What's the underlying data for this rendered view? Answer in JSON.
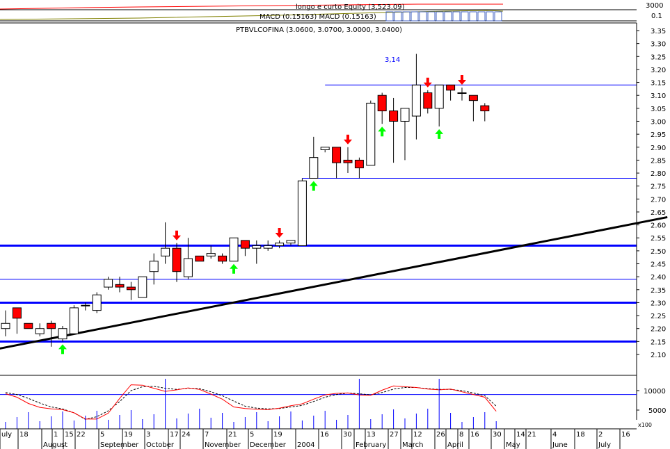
{
  "header": {
    "equity_label": "longo e curto Equity (3,523.09)",
    "macd_label": "MACD (0.15163) MACD (0.15163)",
    "price_label": "PTBVLCOFINA (3.0600, 3.0700, 3.0000, 3.0400)"
  },
  "top_axis": {
    "equity_tick": "3000",
    "macd_tick": "0.1"
  },
  "annotation": {
    "level_label": "3,14"
  },
  "colors": {
    "up_body": "#ffffff",
    "down_body": "#ff0000",
    "hline": "#0000ff",
    "trendline": "#000000",
    "buy_arrow": "#00ff00",
    "sell_arrow": "#ff0000",
    "indicator_fast": "#ff0000",
    "indicator_slow": "#000000",
    "volume": "#0000ff"
  },
  "chart_data": {
    "type": "candlestick",
    "title": "PTBVLCOFINA",
    "ylim": [
      2.08,
      3.37
    ],
    "y_ticks": [
      "3.35",
      "3.30",
      "3.25",
      "3.20",
      "3.15",
      "3.10",
      "3.05",
      "3.00",
      "2.95",
      "2.90",
      "2.85",
      "2.80",
      "2.75",
      "2.70",
      "2.65",
      "2.60",
      "2.55",
      "2.50",
      "2.45",
      "2.40",
      "2.35",
      "2.30",
      "2.25",
      "2.20",
      "2.15",
      "2.10"
    ],
    "x_ticks": [
      "uly",
      "18",
      "August",
      "1",
      "15",
      "22",
      "5",
      "September",
      "19",
      "3",
      "October",
      "17",
      "24",
      "7",
      "November",
      "21",
      "5",
      "December",
      "19",
      "2004",
      "16",
      "30",
      "February",
      "13",
      "27",
      "March",
      "12",
      "26",
      "April",
      "8",
      "16",
      "30",
      "May",
      "14",
      "21",
      "4",
      "June",
      "18",
      "2",
      "July",
      "16"
    ],
    "candles": [
      {
        "o": 2.2,
        "h": 2.27,
        "l": 2.17,
        "c": 2.22
      },
      {
        "o": 2.28,
        "h": 2.28,
        "l": 2.18,
        "c": 2.24
      },
      {
        "o": 2.22,
        "h": 2.21,
        "l": 2.2,
        "c": 2.2
      },
      {
        "o": 2.18,
        "h": 2.22,
        "l": 2.17,
        "c": 2.2
      },
      {
        "o": 2.22,
        "h": 2.23,
        "l": 2.13,
        "c": 2.2
      },
      {
        "o": 2.16,
        "h": 2.21,
        "l": 2.15,
        "c": 2.2
      },
      {
        "o": 2.18,
        "h": 2.29,
        "l": 2.18,
        "c": 2.28
      },
      {
        "o": 2.29,
        "h": 2.3,
        "l": 2.27,
        "c": 2.29
      },
      {
        "o": 2.27,
        "h": 2.34,
        "l": 2.26,
        "c": 2.33
      },
      {
        "o": 2.36,
        "h": 2.4,
        "l": 2.35,
        "c": 2.39
      },
      {
        "o": 2.37,
        "h": 2.4,
        "l": 2.34,
        "c": 2.36
      },
      {
        "o": 2.36,
        "h": 2.38,
        "l": 2.31,
        "c": 2.35
      },
      {
        "o": 2.32,
        "h": 2.4,
        "l": 2.32,
        "c": 2.4
      },
      {
        "o": 2.42,
        "h": 2.49,
        "l": 2.37,
        "c": 2.46
      },
      {
        "o": 2.48,
        "h": 2.61,
        "l": 2.45,
        "c": 2.51
      },
      {
        "o": 2.51,
        "h": 2.53,
        "l": 2.38,
        "c": 2.42
      },
      {
        "o": 2.4,
        "h": 2.55,
        "l": 2.39,
        "c": 2.47
      },
      {
        "o": 2.48,
        "h": 2.47,
        "l": 2.46,
        "c": 2.46
      },
      {
        "o": 2.48,
        "h": 2.52,
        "l": 2.47,
        "c": 2.49
      },
      {
        "o": 2.48,
        "h": 2.49,
        "l": 2.45,
        "c": 2.46
      },
      {
        "o": 2.46,
        "h": 2.55,
        "l": 2.46,
        "c": 2.55
      },
      {
        "o": 2.54,
        "h": 2.54,
        "l": 2.48,
        "c": 2.51
      },
      {
        "o": 2.51,
        "h": 2.54,
        "l": 2.45,
        "c": 2.52
      },
      {
        "o": 2.51,
        "h": 2.54,
        "l": 2.5,
        "c": 2.52
      },
      {
        "o": 2.52,
        "h": 2.54,
        "l": 2.51,
        "c": 2.53
      },
      {
        "o": 2.53,
        "h": 2.54,
        "l": 2.52,
        "c": 2.54
      },
      {
        "o": 2.52,
        "h": 2.78,
        "l": 2.52,
        "c": 2.77
      },
      {
        "o": 2.78,
        "h": 2.94,
        "l": 2.78,
        "c": 2.86
      },
      {
        "o": 2.89,
        "h": 2.9,
        "l": 2.88,
        "c": 2.9
      },
      {
        "o": 2.9,
        "h": 2.9,
        "l": 2.78,
        "c": 2.84
      },
      {
        "o": 2.85,
        "h": 2.9,
        "l": 2.8,
        "c": 2.84
      },
      {
        "o": 2.85,
        "h": 2.86,
        "l": 2.78,
        "c": 2.82
      },
      {
        "o": 2.83,
        "h": 3.08,
        "l": 2.83,
        "c": 3.07
      },
      {
        "o": 3.1,
        "h": 3.11,
        "l": 2.99,
        "c": 3.04
      },
      {
        "o": 3.04,
        "h": 3.09,
        "l": 2.84,
        "c": 3.0
      },
      {
        "o": 3.0,
        "h": 3.05,
        "l": 2.85,
        "c": 3.05
      },
      {
        "o": 3.02,
        "h": 3.26,
        "l": 2.93,
        "c": 3.14
      },
      {
        "o": 3.11,
        "h": 3.12,
        "l": 3.03,
        "c": 3.05
      },
      {
        "o": 3.05,
        "h": 3.14,
        "l": 2.98,
        "c": 3.14
      },
      {
        "o": 3.14,
        "h": 3.14,
        "l": 3.08,
        "c": 3.12
      },
      {
        "o": 3.11,
        "h": 3.13,
        "l": 3.08,
        "c": 3.11
      },
      {
        "o": 3.1,
        "h": 3.1,
        "l": 3.0,
        "c": 3.08
      },
      {
        "o": 3.06,
        "h": 3.07,
        "l": 3.0,
        "c": 3.04
      }
    ],
    "horizontal_levels": [
      {
        "y": 3.14,
        "weight": "thin",
        "from_candle": 28
      },
      {
        "y": 2.78,
        "weight": "thin",
        "from_candle": 26
      },
      {
        "y": 2.52,
        "weight": "thick"
      },
      {
        "y": 2.39,
        "weight": "thin"
      },
      {
        "y": 2.3,
        "weight": "thick"
      },
      {
        "y": 2.15,
        "weight": "thick"
      }
    ],
    "trendline": {
      "from_candle": -2,
      "from_y": 2.11,
      "to_candle": 58,
      "to_y": 2.63
    },
    "signals": {
      "buy": [
        5,
        20,
        27,
        33,
        38
      ],
      "sell": [
        15,
        24,
        30,
        37,
        40
      ]
    },
    "indicator": {
      "ticks": [
        "10000",
        "5000"
      ],
      "fast": [
        9200,
        8300,
        6700,
        5700,
        5300,
        5100,
        4300,
        2700,
        2700,
        4200,
        8000,
        11500,
        11400,
        10600,
        9800,
        10200,
        10700,
        10300,
        9100,
        7800,
        5800,
        5400,
        5200,
        5100,
        5500,
        6100,
        6600,
        7800,
        8900,
        9300,
        9400,
        8900,
        8800,
        10100,
        11200,
        11000,
        10800,
        10400,
        10200,
        10400,
        9700,
        9000,
        8300,
        4700
      ],
      "slow": [
        9500,
        9000,
        8000,
        6800,
        5800,
        5300,
        4300,
        2600,
        3300,
        4800,
        7200,
        10000,
        11000,
        11100,
        10600,
        10300,
        10600,
        10500,
        9700,
        8700,
        7300,
        6000,
        5500,
        5300,
        5400,
        5800,
        6200,
        7200,
        8300,
        9000,
        9400,
        9200,
        8900,
        9500,
        10400,
        10800,
        10800,
        10500,
        10300,
        10300,
        10000,
        9400,
        8700,
        6000
      ],
      "volume": [
        0,
        0,
        0,
        0,
        0,
        0,
        0,
        0,
        0,
        0,
        0,
        0,
        0,
        0,
        1,
        0,
        0,
        0,
        0,
        0,
        0,
        0,
        0,
        0,
        0,
        0,
        0,
        0,
        0,
        0,
        0,
        1,
        0,
        0,
        0,
        0,
        0,
        0,
        1,
        0,
        0,
        0,
        0,
        0
      ]
    }
  }
}
